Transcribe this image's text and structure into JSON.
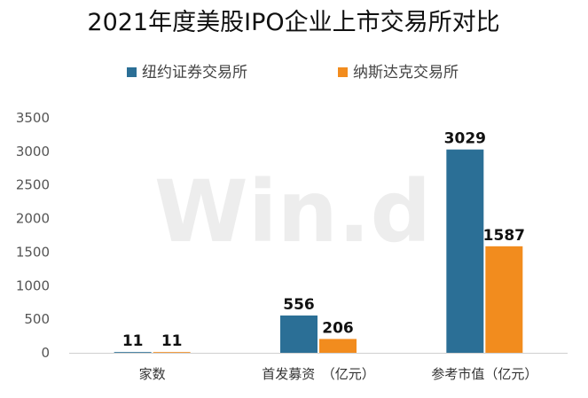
{
  "chart_data": {
    "type": "bar",
    "title": "2021年度美股IPO企业上市交易所对比",
    "categories": [
      "家数",
      "首发募资　（亿元）",
      "参考市值（亿元）"
    ],
    "series": [
      {
        "name": "纽约证券交易所",
        "color": "#2b6f96",
        "values": [
          11,
          556,
          3029
        ]
      },
      {
        "name": "纳斯达克交易所",
        "color": "#f28c1e",
        "values": [
          11,
          206,
          1587
        ]
      }
    ],
    "ylim": [
      0,
      3500
    ],
    "yticks": [
      0,
      500,
      1000,
      1500,
      2000,
      2500,
      3000,
      3500
    ],
    "grid": false,
    "legend_position": "top"
  },
  "watermark": "Win.d"
}
